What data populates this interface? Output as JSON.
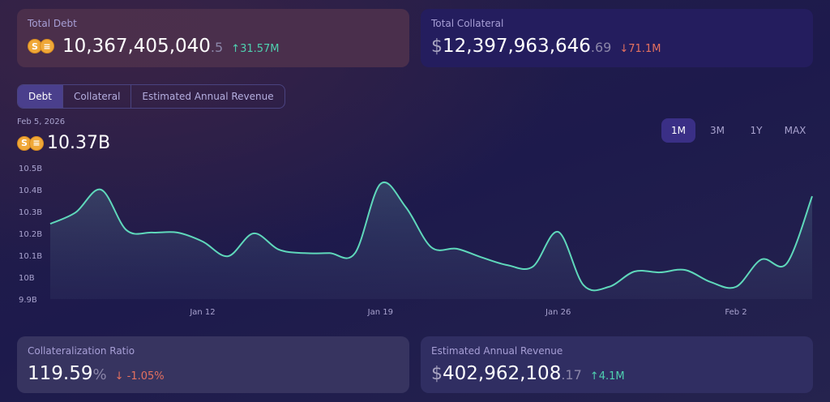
{
  "total_debt": {
    "label": "Total Debt",
    "value": "10,367,405,040",
    "decimal": ".5",
    "change": "31.57M",
    "direction": "up"
  },
  "total_collateral": {
    "label": "Total Collateral",
    "currency": "$",
    "value": "12,397,963,646",
    "decimal": ".69",
    "change": "71.1M",
    "direction": "down"
  },
  "tabs": [
    {
      "label": "Debt",
      "active": true
    },
    {
      "label": "Collateral"
    },
    {
      "label": "Estimated Annual Revenue"
    }
  ],
  "selected": {
    "date": "Feb 5, 2026",
    "value": "10.37B"
  },
  "ranges": [
    {
      "label": "1M",
      "active": true
    },
    {
      "label": "3M"
    },
    {
      "label": "1Y"
    },
    {
      "label": "MAX"
    }
  ],
  "collateralization_ratio": {
    "label": "Collateralization Ratio",
    "value": "119.59",
    "unit": "%",
    "change": "-1.05%",
    "direction": "down"
  },
  "annual_revenue": {
    "label": "Estimated Annual Revenue",
    "currency": "$",
    "value": "402,962,108",
    "decimal": ".17",
    "change": "4.1M",
    "direction": "up"
  },
  "colors": {
    "line": "#5fd8bb",
    "up": "#4fd1b0",
    "down": "#e4705f",
    "accent": "#3a2f86"
  },
  "icons": {
    "up": "↑",
    "down": "↓",
    "coin_s": "S",
    "coin_e": "≡"
  },
  "chart_data": {
    "type": "area",
    "ylim": [
      9.9,
      10.5
    ],
    "yticks": [
      "10.5B",
      "10.4B",
      "10.3B",
      "10.2B",
      "10.1B",
      "10B",
      "9.9B"
    ],
    "ytick_values": [
      10.5,
      10.4,
      10.3,
      10.2,
      10.1,
      10.0,
      9.9
    ],
    "xticks": [
      "Jan 12",
      "Jan 19",
      "Jan 26",
      "Feb 2"
    ],
    "xtick_dates": [
      "Jan 12",
      "Jan 19",
      "Jan 26",
      "Feb 2"
    ],
    "x": [
      "Jan 6",
      "Jan 7",
      "Jan 8",
      "Jan 9",
      "Jan 10",
      "Jan 11",
      "Jan 12",
      "Jan 13",
      "Jan 14",
      "Jan 15",
      "Jan 16",
      "Jan 17",
      "Jan 18",
      "Jan 19",
      "Jan 20",
      "Jan 21",
      "Jan 22",
      "Jan 23",
      "Jan 24",
      "Jan 25",
      "Jan 26",
      "Jan 27",
      "Jan 28",
      "Jan 29",
      "Jan 30",
      "Jan 31",
      "Feb 1",
      "Feb 2",
      "Feb 3",
      "Feb 4",
      "Feb 5"
    ],
    "values": [
      10.244,
      10.296,
      10.4,
      10.215,
      10.204,
      10.204,
      10.163,
      10.096,
      10.2,
      10.126,
      10.11,
      10.11,
      10.11,
      10.426,
      10.32,
      10.137,
      10.13,
      10.09,
      10.055,
      10.048,
      10.207,
      9.963,
      9.956,
      10.026,
      10.022,
      10.033,
      9.978,
      9.956,
      10.081,
      10.063,
      10.37
    ],
    "unit": "B"
  }
}
